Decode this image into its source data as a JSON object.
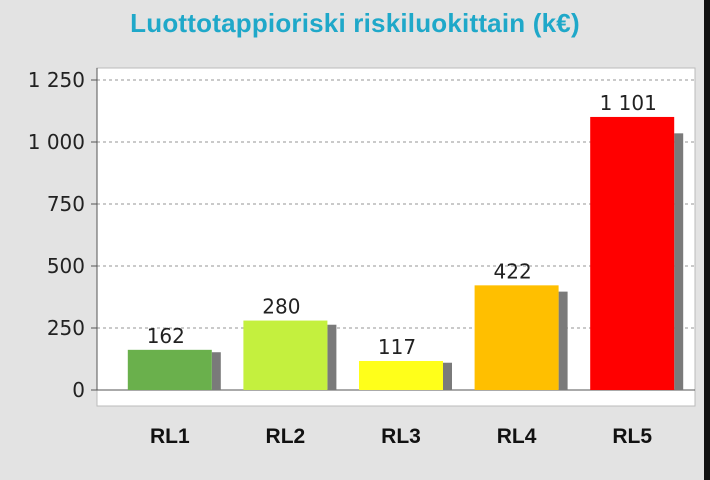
{
  "chart_data": {
    "type": "bar",
    "title": "Luottotappioriski riskiluokittain (k€)",
    "categories": [
      "RL1",
      "RL2",
      "RL3",
      "RL4",
      "RL5"
    ],
    "values": [
      162,
      280,
      117,
      422,
      1101
    ],
    "value_labels": [
      "162",
      "280",
      "117",
      "422",
      "1 101"
    ],
    "bar_colors": [
      "#6ab04c",
      "#c4f03e",
      "#ffff1a",
      "#ffbf00",
      "#ff0000"
    ],
    "shadow_color": "#7a7a7a",
    "ylim": [
      0,
      1250
    ],
    "yticks": [
      0,
      250,
      500,
      750,
      1000,
      1250
    ],
    "ytick_labels": [
      "0",
      "250",
      "500",
      "750",
      "1 000",
      "1 250"
    ],
    "grid": true,
    "grid_style": "dotted",
    "xlabel": "",
    "ylabel": "",
    "colors": {
      "title": "#1fa8c9",
      "background": "#e3e3e3",
      "plot_background": "#ffffff",
      "grid": "#aaaaaa",
      "axis": "#555555"
    }
  }
}
